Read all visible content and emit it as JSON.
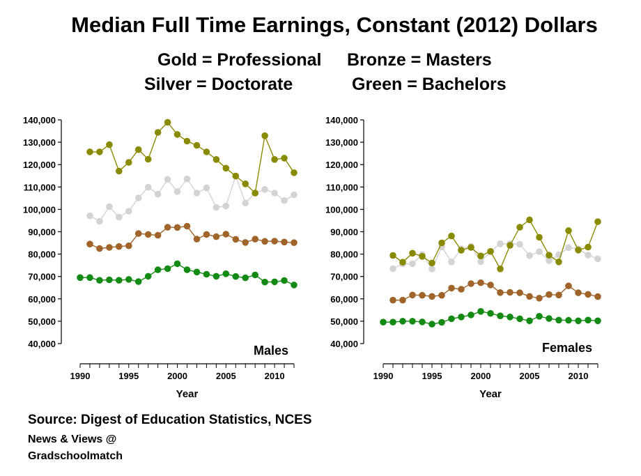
{
  "title": "Median Full Time Earnings, Constant (2012) Dollars",
  "legend_text": {
    "gold": "Gold = Professional",
    "bronze": "Bronze = Masters",
    "silver": "Silver = Doctorate",
    "green": "Green = Bachelors"
  },
  "source": "Source: Digest of Education Statistics, NCES",
  "credit_line1": "News & Views @",
  "credit_line2": "Gradschoolmatch",
  "colors": {
    "Professional": "#8a8a00",
    "Doctorate": "#d3d3d3",
    "Masters": "#a0642a",
    "Bachelors": "#138a13"
  },
  "chart_data": [
    {
      "type": "line",
      "panel_label": "Males",
      "xlabel": "Year",
      "ylabel": "",
      "xlim": [
        1990,
        2012
      ],
      "ylim": [
        40000,
        140000
      ],
      "xticks": [
        1990,
        1995,
        2000,
        2005,
        2010
      ],
      "yticks": [
        40000,
        50000,
        60000,
        70000,
        80000,
        90000,
        100000,
        110000,
        120000,
        130000,
        140000
      ],
      "ytick_labels": [
        "40,000",
        "50,000",
        "60,000",
        "70,000",
        "80,000",
        "90,000",
        "100,000",
        "110,000",
        "120,000",
        "130,000",
        "140,000"
      ],
      "grid": false,
      "series": [
        {
          "name": "Professional",
          "x": [
            1991,
            1992,
            1993,
            1994,
            1995,
            1996,
            1997,
            1998,
            1999,
            2000,
            2001,
            2002,
            2003,
            2004,
            2005,
            2006,
            2007,
            2008,
            2009,
            2010,
            2011,
            2012
          ],
          "values": [
            125700,
            125700,
            128900,
            117100,
            121000,
            126700,
            122400,
            134400,
            138900,
            133500,
            130500,
            128600,
            125700,
            122300,
            118400,
            114900,
            111400,
            107300,
            132900,
            122300,
            122900,
            116400
          ]
        },
        {
          "name": "Doctorate",
          "x": [
            1991,
            1992,
            1993,
            1994,
            1995,
            1996,
            1997,
            1998,
            1999,
            2000,
            2001,
            2002,
            2003,
            2004,
            2005,
            2006,
            2007,
            2008,
            2009,
            2010,
            2011,
            2012
          ],
          "values": [
            97100,
            94700,
            101200,
            96500,
            99200,
            105100,
            109900,
            106800,
            113400,
            107900,
            113600,
            107300,
            109600,
            100900,
            101500,
            114900,
            102800,
            107300,
            108900,
            107300,
            103900,
            106500
          ]
        },
        {
          "name": "Masters",
          "x": [
            1991,
            1992,
            1993,
            1994,
            1995,
            1996,
            1997,
            1998,
            1999,
            2000,
            2001,
            2002,
            2003,
            2004,
            2005,
            2006,
            2007,
            2008,
            2009,
            2010,
            2011,
            2012
          ],
          "values": [
            84500,
            82500,
            83000,
            83400,
            83700,
            89200,
            88800,
            88400,
            92000,
            91900,
            92500,
            86700,
            88800,
            87800,
            88900,
            86600,
            85200,
            86700,
            85700,
            85800,
            85400,
            85100
          ]
        },
        {
          "name": "Bachelors",
          "x": [
            1990,
            1991,
            1992,
            1993,
            1994,
            1995,
            1996,
            1997,
            1998,
            1999,
            2000,
            2001,
            2002,
            2003,
            2004,
            2005,
            2006,
            2007,
            2008,
            2009,
            2010,
            2011,
            2012
          ],
          "values": [
            69500,
            69500,
            68300,
            68500,
            68300,
            68700,
            67700,
            70100,
            73000,
            73500,
            75700,
            73000,
            72000,
            71000,
            70100,
            71200,
            70000,
            69400,
            70700,
            67500,
            67600,
            68200,
            66200
          ]
        }
      ]
    },
    {
      "type": "line",
      "panel_label": "Females",
      "xlabel": "Year",
      "ylabel": "",
      "xlim": [
        1990,
        2012
      ],
      "ylim": [
        40000,
        140000
      ],
      "xticks": [
        1990,
        1995,
        2000,
        2005,
        2010
      ],
      "yticks": [
        40000,
        50000,
        60000,
        70000,
        80000,
        90000,
        100000,
        110000,
        120000,
        130000,
        140000
      ],
      "ytick_labels": [
        "40,000",
        "50,000",
        "60,000",
        "70,000",
        "80,000",
        "90,000",
        "100,000",
        "110,000",
        "120,000",
        "130,000",
        "140,000"
      ],
      "grid": false,
      "series": [
        {
          "name": "Professional",
          "x": [
            1991,
            1992,
            1993,
            1994,
            1995,
            1996,
            1997,
            1998,
            1999,
            2000,
            2001,
            2002,
            2003,
            2004,
            2005,
            2006,
            2007,
            2008,
            2009,
            2010,
            2011,
            2012
          ],
          "values": [
            79400,
            76400,
            80400,
            79000,
            76000,
            85000,
            88100,
            81700,
            83000,
            79200,
            81200,
            73400,
            83900,
            92000,
            95300,
            87500,
            79500,
            76500,
            90500,
            81800,
            83100,
            94500
          ]
        },
        {
          "name": "Doctorate",
          "x": [
            1991,
            1992,
            1993,
            1994,
            1995,
            1996,
            1997,
            1998,
            1999,
            2000,
            2001,
            2002,
            2003,
            2004,
            2005,
            2006,
            2007,
            2008,
            2009,
            2010,
            2011,
            2012
          ],
          "values": [
            73500,
            75600,
            75700,
            79800,
            73300,
            83200,
            76500,
            82300,
            83500,
            76600,
            81100,
            84600,
            84600,
            84400,
            79300,
            81100,
            77100,
            79700,
            82900,
            82300,
            79600,
            77900
          ]
        },
        {
          "name": "Masters",
          "x": [
            1991,
            1992,
            1993,
            1994,
            1995,
            1996,
            1997,
            1998,
            1999,
            2000,
            2001,
            2002,
            2003,
            2004,
            2005,
            2006,
            2007,
            2008,
            2009,
            2010,
            2011,
            2012
          ],
          "values": [
            59400,
            59400,
            61700,
            61600,
            61100,
            61600,
            64800,
            64300,
            66800,
            67200,
            66200,
            62800,
            62900,
            62700,
            61100,
            60300,
            61900,
            61700,
            65800,
            62700,
            62000,
            61000
          ]
        },
        {
          "name": "Bachelors",
          "x": [
            1990,
            1991,
            1992,
            1993,
            1994,
            1995,
            1996,
            1997,
            1998,
            1999,
            2000,
            2001,
            2002,
            2003,
            2004,
            2005,
            2006,
            2007,
            2008,
            2009,
            2010,
            2011,
            2012
          ],
          "values": [
            49600,
            49600,
            50000,
            50000,
            49700,
            48700,
            49500,
            51100,
            51900,
            52800,
            54400,
            53500,
            52400,
            51900,
            51100,
            50200,
            52200,
            51200,
            50500,
            50400,
            50200,
            50500,
            50200
          ]
        }
      ]
    }
  ]
}
